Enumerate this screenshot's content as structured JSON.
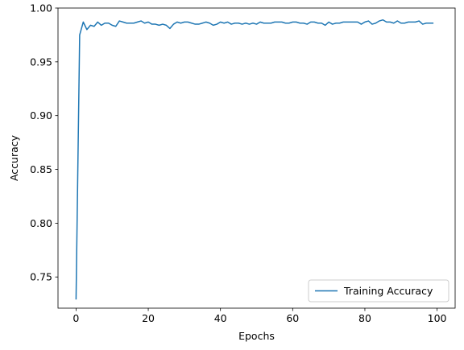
{
  "chart_data": {
    "type": "line",
    "xlabel": "Epochs",
    "ylabel": "Accuracy",
    "xlim": [
      -5,
      105
    ],
    "ylim": [
      0.721,
      1.0
    ],
    "xticks": [
      0,
      20,
      40,
      60,
      80,
      100
    ],
    "yticks": [
      0.75,
      0.8,
      0.85,
      0.9,
      0.95,
      1.0
    ],
    "xtick_labels": [
      "0",
      "20",
      "40",
      "60",
      "80",
      "100"
    ],
    "ytick_labels": [
      "0.75",
      "0.80",
      "0.85",
      "0.90",
      "0.95",
      "1.00"
    ],
    "grid": false,
    "legend_position": "lower right",
    "series": [
      {
        "name": "Training Accuracy",
        "color": "#1f77b4",
        "x": [
          0,
          1,
          2,
          3,
          4,
          5,
          6,
          7,
          8,
          9,
          10,
          11,
          12,
          13,
          14,
          15,
          16,
          17,
          18,
          19,
          20,
          21,
          22,
          23,
          24,
          25,
          26,
          27,
          28,
          29,
          30,
          31,
          32,
          33,
          34,
          35,
          36,
          37,
          38,
          39,
          40,
          41,
          42,
          43,
          44,
          45,
          46,
          47,
          48,
          49,
          50,
          51,
          52,
          53,
          54,
          55,
          56,
          57,
          58,
          59,
          60,
          61,
          62,
          63,
          64,
          65,
          66,
          67,
          68,
          69,
          70,
          71,
          72,
          73,
          74,
          75,
          76,
          77,
          78,
          79,
          80,
          81,
          82,
          83,
          84,
          85,
          86,
          87,
          88,
          89,
          90,
          91,
          92,
          93,
          94,
          95,
          96,
          97,
          98,
          99
        ],
        "values": [
          0.729,
          0.975,
          0.987,
          0.98,
          0.984,
          0.983,
          0.987,
          0.984,
          0.986,
          0.986,
          0.984,
          0.983,
          0.988,
          0.987,
          0.986,
          0.986,
          0.986,
          0.987,
          0.988,
          0.986,
          0.987,
          0.985,
          0.985,
          0.984,
          0.985,
          0.984,
          0.981,
          0.985,
          0.987,
          0.986,
          0.987,
          0.987,
          0.986,
          0.985,
          0.985,
          0.986,
          0.987,
          0.986,
          0.984,
          0.985,
          0.987,
          0.986,
          0.987,
          0.985,
          0.986,
          0.986,
          0.985,
          0.986,
          0.985,
          0.986,
          0.985,
          0.987,
          0.986,
          0.986,
          0.986,
          0.987,
          0.987,
          0.987,
          0.986,
          0.986,
          0.987,
          0.987,
          0.986,
          0.986,
          0.985,
          0.987,
          0.987,
          0.986,
          0.986,
          0.984,
          0.987,
          0.985,
          0.986,
          0.986,
          0.987,
          0.987,
          0.987,
          0.987,
          0.987,
          0.985,
          0.987,
          0.988,
          0.985,
          0.986,
          0.988,
          0.989,
          0.987,
          0.987,
          0.986,
          0.988,
          0.986,
          0.986,
          0.987,
          0.987,
          0.987,
          0.988,
          0.985,
          0.986,
          0.986,
          0.986
        ]
      }
    ]
  }
}
